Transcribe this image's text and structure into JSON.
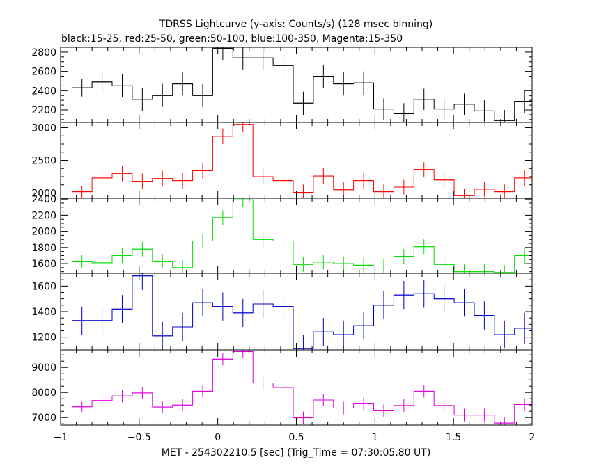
{
  "chart_data": {
    "type": "line",
    "title": "TDRSS Lightcurve (y-axis: Counts/s) (128 msec binning)",
    "subtitle": "black:15-25, red:25-50, green:50-100, blue:100-350, Magenta:15-350",
    "xlabel": "MET - 254302210.5 [sec] (Trig_Time = 07:30:05.80 UT)",
    "xlim": [
      -1,
      2
    ],
    "x_ticks": [
      -1,
      -0.5,
      0,
      0.5,
      1,
      1.5,
      2
    ],
    "x_tick_labels": [
      "−1",
      "−0.5",
      "0",
      "0.5",
      "1",
      "1.5",
      "2"
    ],
    "bin_width": 0.128,
    "bin_centers": [
      -0.864,
      -0.736,
      -0.608,
      -0.48,
      -0.352,
      -0.224,
      -0.096,
      0.032,
      0.16,
      0.288,
      0.416,
      0.544,
      0.672,
      0.8,
      0.928,
      1.056,
      1.184,
      1.312,
      1.44,
      1.568,
      1.696,
      1.824,
      1.952
    ],
    "panels": [
      {
        "name": "15-25",
        "color": "#000000",
        "ylim": [
          2070,
          2850
        ],
        "y_ticks": [
          2200,
          2400,
          2600,
          2800
        ],
        "values": [
          2430,
          2490,
          2450,
          2310,
          2350,
          2470,
          2350,
          2840,
          2740,
          2740,
          2660,
          2270,
          2550,
          2470,
          2480,
          2210,
          2160,
          2310,
          2210,
          2260,
          2190,
          2090,
          2290
        ],
        "errors": [
          90,
          120,
          120,
          120,
          120,
          120,
          120,
          120,
          120,
          120,
          120,
          120,
          120,
          120,
          120,
          110,
          110,
          110,
          110,
          110,
          110,
          110,
          120
        ]
      },
      {
        "name": "25-50",
        "color": "#ff0000",
        "ylim": [
          1920,
          3080
        ],
        "y_ticks": [
          2000,
          2500,
          3000
        ],
        "values": [
          2020,
          2230,
          2300,
          2180,
          2220,
          2190,
          2340,
          2870,
          3050,
          2250,
          2190,
          2010,
          2260,
          2050,
          2190,
          2020,
          2090,
          2360,
          2200,
          1960,
          2060,
          2020,
          2230
        ],
        "errors": [
          90,
          120,
          120,
          120,
          120,
          120,
          120,
          120,
          120,
          120,
          120,
          120,
          120,
          120,
          120,
          110,
          110,
          110,
          110,
          110,
          110,
          110,
          120
        ]
      },
      {
        "name": "50-100",
        "color": "#00dd00",
        "ylim": [
          1480,
          2410
        ],
        "y_ticks": [
          1600,
          1800,
          2000,
          2200,
          2400
        ],
        "values": [
          1630,
          1610,
          1700,
          1780,
          1630,
          1550,
          1880,
          2170,
          2390,
          1900,
          1880,
          1590,
          1620,
          1600,
          1580,
          1570,
          1690,
          1810,
          1590,
          1500,
          1500,
          1490,
          1700
        ],
        "errors": [
          80,
          90,
          90,
          90,
          90,
          90,
          90,
          90,
          90,
          90,
          90,
          90,
          90,
          90,
          90,
          90,
          90,
          90,
          90,
          90,
          90,
          90,
          100
        ]
      },
      {
        "name": "100-350",
        "color": "#0000cc",
        "ylim": [
          1100,
          1700
        ],
        "y_ticks": [
          1200,
          1400,
          1600
        ],
        "values": [
          1330,
          1330,
          1420,
          1680,
          1210,
          1280,
          1470,
          1440,
          1390,
          1460,
          1440,
          1110,
          1240,
          1220,
          1290,
          1450,
          1530,
          1540,
          1500,
          1470,
          1370,
          1220,
          1270
        ],
        "errors": [
          110,
          110,
          110,
          110,
          110,
          110,
          110,
          110,
          110,
          110,
          110,
          110,
          110,
          110,
          110,
          110,
          110,
          110,
          110,
          110,
          110,
          110,
          120
        ]
      },
      {
        "name": "15-350",
        "color": "#dd00dd",
        "ylim": [
          6700,
          9700
        ],
        "y_ticks": [
          7000,
          8000,
          9000
        ],
        "values": [
          7430,
          7680,
          7860,
          7980,
          7420,
          7500,
          8050,
          9330,
          9630,
          8380,
          8200,
          6990,
          7700,
          7380,
          7550,
          7270,
          7480,
          8050,
          7480,
          7100,
          7100,
          6780,
          7520
        ],
        "errors": [
          200,
          250,
          250,
          250,
          250,
          250,
          250,
          250,
          250,
          250,
          250,
          250,
          250,
          250,
          250,
          250,
          250,
          250,
          250,
          250,
          250,
          250,
          250
        ]
      }
    ]
  }
}
